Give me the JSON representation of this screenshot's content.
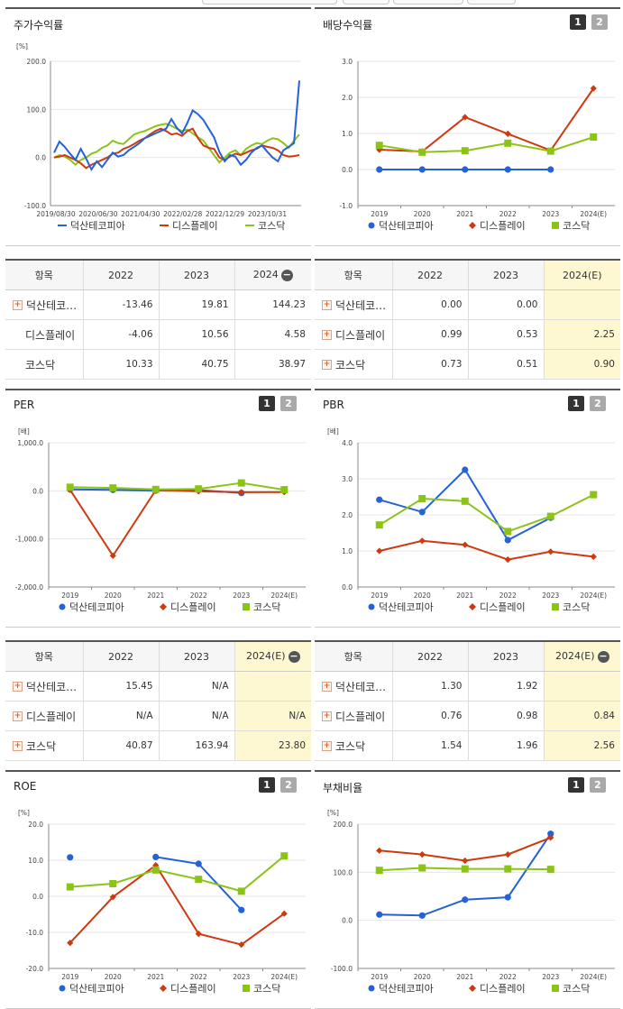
{
  "series_names": [
    "덕산테코피아",
    "디스플레이",
    "코스닥"
  ],
  "colors": {
    "s1": "#2462d6",
    "s2": "#cc3a0e",
    "s3": "#8cc317"
  },
  "panels": {
    "stock": {
      "title": "주가수익률",
      "unit": "[%]",
      "chart_data": {
        "type": "line",
        "ylim": [
          -100,
          200
        ],
        "yticks": [
          "200.0",
          "100.0",
          "0.0",
          "-100.0"
        ],
        "x_tick_labels": [
          "2019/08/30",
          "2020/06/30",
          "2021/04/30",
          "2022/02/28",
          "2022/12/29",
          "2023/10/31"
        ],
        "series": [
          {
            "name": "덕산테코피아",
            "values": [
              10,
              33,
              22,
              8,
              -5,
              18,
              -2,
              -25,
              -8,
              -20,
              -5,
              10,
              2,
              5,
              15,
              22,
              30,
              40,
              45,
              50,
              55,
              60,
              80,
              62,
              50,
              72,
              98,
              90,
              78,
              60,
              42,
              12,
              -8,
              5,
              2,
              -15,
              -5,
              10,
              20,
              25,
              12,
              0,
              -8,
              15,
              22,
              30,
              160
            ]
          },
          {
            "name": "디스플레이",
            "values": [
              0,
              2,
              5,
              0,
              -5,
              -12,
              -22,
              -15,
              -10,
              -5,
              0,
              8,
              10,
              18,
              22,
              28,
              35,
              40,
              48,
              55,
              60,
              55,
              48,
              50,
              45,
              55,
              60,
              40,
              25,
              20,
              18,
              0,
              -5,
              2,
              8,
              5,
              10,
              15,
              18,
              25,
              22,
              20,
              15,
              5,
              2,
              3,
              5
            ]
          },
          {
            "name": "코스닥",
            "values": [
              0,
              5,
              2,
              -5,
              -15,
              -5,
              0,
              8,
              12,
              20,
              25,
              35,
              30,
              28,
              38,
              48,
              52,
              55,
              60,
              65,
              68,
              70,
              66,
              60,
              55,
              58,
              50,
              42,
              35,
              20,
              5,
              -10,
              0,
              10,
              15,
              5,
              18,
              25,
              30,
              28,
              35,
              40,
              38,
              30,
              20,
              35,
              48
            ]
          }
        ]
      }
    },
    "dividend": {
      "title": "배당수익률",
      "btn1": "1",
      "btn2": "2",
      "chart_data": {
        "type": "line",
        "categories": [
          "2019",
          "2020",
          "2021",
          "2022",
          "2023",
          "2024(E)"
        ],
        "ylim": [
          -1,
          3
        ],
        "yticks": [
          "3.0",
          "2.0",
          "1.0",
          "0.0",
          "-1.0"
        ],
        "series": [
          {
            "name": "덕산테코피아",
            "values": [
              0.0,
              0.0,
              0.0,
              0.0,
              0.0,
              null
            ]
          },
          {
            "name": "디스플레이",
            "values": [
              0.55,
              0.5,
              1.45,
              0.99,
              0.53,
              2.25
            ]
          },
          {
            "name": "코스닥",
            "values": [
              0.67,
              0.48,
              0.52,
              0.73,
              0.51,
              0.9
            ]
          }
        ]
      }
    },
    "per": {
      "title": "PER",
      "unit": "[배]",
      "btn1": "1",
      "btn2": "2",
      "chart_data": {
        "type": "line",
        "categories": [
          "2019",
          "2020",
          "2021",
          "2022",
          "2023",
          "2024(E)"
        ],
        "ylim": [
          -2000,
          1000
        ],
        "yticks": [
          "1,000.0",
          "0.0",
          "-1,000.0",
          "-2,000.0"
        ],
        "series": [
          {
            "name": "덕산테코피아",
            "values": [
              30,
              20,
              5,
              15.45,
              -45,
              null
            ]
          },
          {
            "name": "디스플레이",
            "values": [
              20,
              -1350,
              15,
              -10,
              -30,
              -25
            ]
          },
          {
            "name": "코스닥",
            "values": [
              75,
              60,
              30,
              40.87,
              163.94,
              23.8
            ]
          }
        ]
      }
    },
    "pbr": {
      "title": "PBR",
      "unit": "[배]",
      "btn1": "1",
      "btn2": "2",
      "chart_data": {
        "type": "line",
        "categories": [
          "2019",
          "2020",
          "2021",
          "2022",
          "2023",
          "2024(E)"
        ],
        "ylim": [
          0,
          4
        ],
        "yticks": [
          "4.0",
          "3.0",
          "2.0",
          "1.0",
          "0.0"
        ],
        "series": [
          {
            "name": "덕산테코피아",
            "values": [
              2.42,
              2.08,
              3.25,
              1.3,
              1.92,
              null
            ]
          },
          {
            "name": "디스플레이",
            "values": [
              1.0,
              1.28,
              1.17,
              0.76,
              0.98,
              0.84
            ]
          },
          {
            "name": "코스닥",
            "values": [
              1.72,
              2.45,
              2.38,
              1.54,
              1.96,
              2.56
            ]
          }
        ]
      }
    },
    "roe": {
      "title": "ROE",
      "unit": "[%]",
      "btn1": "1",
      "btn2": "2",
      "chart_data": {
        "type": "line",
        "categories": [
          "2019",
          "2020",
          "2021",
          "2022",
          "2023",
          "2024(E)"
        ],
        "ylim": [
          -20,
          20
        ],
        "yticks": [
          "20.0",
          "10.0",
          "0.0",
          "-10.0",
          "-20.0"
        ],
        "series": [
          {
            "name": "덕산테코피아",
            "values": [
              10.8,
              null,
              10.9,
              9.0,
              -3.8,
              null
            ]
          },
          {
            "name": "디스플레이",
            "values": [
              -12.9,
              -0.2,
              8.6,
              -10.4,
              -13.4,
              -4.8
            ]
          },
          {
            "name": "코스닥",
            "values": [
              2.6,
              3.5,
              7.3,
              4.7,
              1.4,
              11.2
            ]
          }
        ]
      }
    },
    "debt": {
      "title": "부채비율",
      "unit": "[%]",
      "btn1": "1",
      "btn2": "2",
      "chart_data": {
        "type": "line",
        "categories": [
          "2019",
          "2020",
          "2021",
          "2022",
          "2023",
          "2024(E)"
        ],
        "ylim": [
          -100,
          200
        ],
        "yticks": [
          "200.0",
          "100.0",
          "0.0",
          "-100.0"
        ],
        "series": [
          {
            "name": "덕산테코피아",
            "values": [
              12,
              10,
              43,
              48,
              180,
              null
            ]
          },
          {
            "name": "디스플레이",
            "values": [
              145,
              137,
              124,
              137,
              172,
              null
            ]
          },
          {
            "name": "코스닥",
            "values": [
              104,
              109,
              107,
              107,
              106,
              null
            ]
          }
        ]
      }
    }
  },
  "tables": {
    "stock": {
      "headers": [
        "항목",
        "2022",
        "2023",
        "2024"
      ],
      "rows": [
        {
          "name": "덕산테코…",
          "plus": true,
          "cells": [
            "-13.46",
            "19.81",
            "144.23"
          ]
        },
        {
          "name": "디스플레이",
          "plus": false,
          "cells": [
            "-4.06",
            "10.56",
            "4.58"
          ]
        },
        {
          "name": "코스닥",
          "plus": false,
          "cells": [
            "10.33",
            "40.75",
            "38.97"
          ]
        }
      ]
    },
    "dividend": {
      "headers": [
        "항목",
        "2022",
        "2023",
        "2024(E)"
      ],
      "rows": [
        {
          "name": "덕산테코…",
          "plus": true,
          "cells": [
            "0.00",
            "0.00",
            ""
          ]
        },
        {
          "name": "디스플레이",
          "plus": true,
          "cells": [
            "0.99",
            "0.53",
            "2.25"
          ]
        },
        {
          "name": "코스닥",
          "plus": true,
          "cells": [
            "0.73",
            "0.51",
            "0.90"
          ]
        }
      ]
    },
    "per": {
      "headers": [
        "항목",
        "2022",
        "2023",
        "2024(E)"
      ],
      "rows": [
        {
          "name": "덕산테코…",
          "plus": true,
          "cells": [
            "15.45",
            "N/A",
            ""
          ]
        },
        {
          "name": "디스플레이",
          "plus": true,
          "cells": [
            "N/A",
            "N/A",
            "N/A"
          ]
        },
        {
          "name": "코스닥",
          "plus": true,
          "cells": [
            "40.87",
            "163.94",
            "23.80"
          ]
        }
      ]
    },
    "pbr": {
      "headers": [
        "항목",
        "2022",
        "2023",
        "2024(E)"
      ],
      "rows": [
        {
          "name": "덕산테코…",
          "plus": true,
          "cells": [
            "1.30",
            "1.92",
            ""
          ]
        },
        {
          "name": "디스플레이",
          "plus": true,
          "cells": [
            "0.76",
            "0.98",
            "0.84"
          ]
        },
        {
          "name": "코스닥",
          "plus": true,
          "cells": [
            "1.54",
            "1.96",
            "2.56"
          ]
        }
      ]
    }
  }
}
